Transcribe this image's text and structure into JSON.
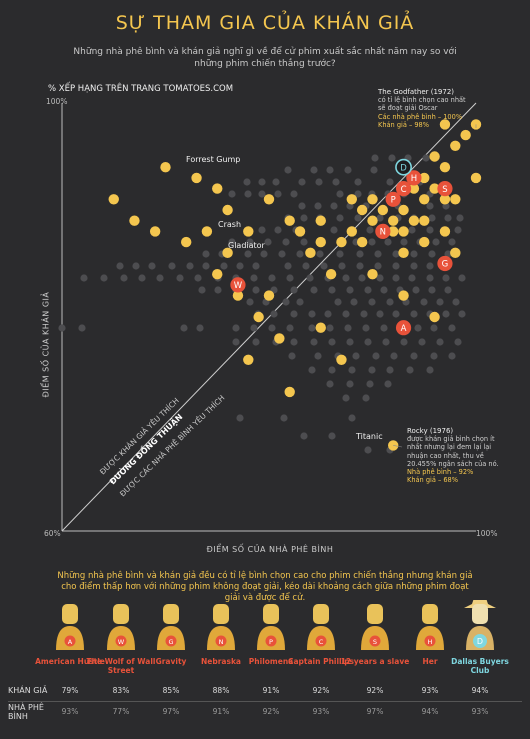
{
  "header": {
    "title": "SỰ THAM GIA CỦA KHÁN GIẢ",
    "subtitle": "Những nhà phê bình và khán giả nghĩ gì về để cử phim xuất sắc nhất năm nay so với những phim chiến thắng trước?"
  },
  "axes": {
    "top_label": "% XẾP HẠNG TRÊN TRANG TOMATOES.COM",
    "y_max_label": "100%",
    "min_label": "60%",
    "x_max_label": "100%",
    "y_title": "ĐIỂM SỐ CỦA KHÁN GIẢ",
    "x_title": "ĐIỂM SỐ CỦA NHÀ PHÊ BÌNH",
    "diag_1": "ĐƯỢC KHÁN GIẢ YÊU THÍCH",
    "diag_2": "ĐƯỜNG ĐỒNG THUẬN",
    "diag_3": "ĐƯỢC CÁC NHÀ PHÊ BÌNH YÊU THÍCH"
  },
  "annotations": {
    "godfather": {
      "head": "The Godfather (1972)",
      "body": "có tỉ lệ bình chọn cao nhất sẽ đoạt giải Oscar",
      "critics": "Các nhà phê bình – 100%",
      "audience": "Khán giả – 98%"
    },
    "rocky": {
      "head": "Rocky (1976)",
      "body": "được khán giả bình chọn ít nhất nhưng lại đem lại lại nhuận cao nhất, thu về 20.455% ngân sách của nó.",
      "critics": "Nhà phê bình – 92%",
      "audience": "Khán giả – 68%"
    },
    "forrest": "Forrest Gump",
    "crash": "Crash",
    "gladiator": "Gladiator",
    "titanic": "Titanic"
  },
  "bottom": {
    "intro": "Những nhà phê bình và khán giả đều có tỉ lệ bình chọn cao cho phim chiến thắng nhưng khán giả cho điểm thấp hơn với những phim không đoạt giải, kéo dài khoảng cách giữa những phim đoạt giải và được để cử.",
    "row_audience": "KHÁN GIẢ",
    "row_critics": "NHÀ PHÊ BÌNH",
    "nominees": [
      {
        "letter": "A",
        "name": "American Hustle",
        "audience": "79%",
        "critics": "93%"
      },
      {
        "letter": "W",
        "name": "The Wolf of Wall Street",
        "audience": "83%",
        "critics": "77%"
      },
      {
        "letter": "G",
        "name": "Gravity",
        "audience": "85%",
        "critics": "97%"
      },
      {
        "letter": "N",
        "name": "Nebraska",
        "audience": "88%",
        "critics": "91%"
      },
      {
        "letter": "P",
        "name": "Philomena",
        "audience": "91%",
        "critics": "92%"
      },
      {
        "letter": "C",
        "name": "Captain Phillips",
        "audience": "92%",
        "critics": "93%"
      },
      {
        "letter": "S",
        "name": "12 years a slave",
        "audience": "92%",
        "critics": "97%"
      },
      {
        "letter": "H",
        "name": "Her",
        "audience": "93%",
        "critics": "94%"
      },
      {
        "letter": "D",
        "name": "Dallas Buyers Club",
        "audience": "94%",
        "critics": "93%"
      }
    ]
  },
  "colors": {
    "bg": "#2b2b2d",
    "gold": "#f4c64f",
    "grey_dot": "#4d4d50",
    "nominee": "#e8523a",
    "winner_ring": "#7fd7e0"
  },
  "chart_data": {
    "type": "scatter",
    "title": "SỰ THAM GIA CỦA KHÁN GIẢ",
    "xlabel": "ĐIỂM SỐ CỦA NHÀ PHÊ BÌNH",
    "ylabel": "ĐIỂM SỐ CỦA KHÁN GIẢ",
    "xlim": [
      60,
      100
    ],
    "ylim": [
      60,
      100
    ],
    "series": [
      {
        "name": "Oscar winners",
        "points": [
          [
            100,
            98
          ],
          [
            98,
            96
          ],
          [
            96,
            95
          ],
          [
            97,
            94
          ],
          [
            95,
            93
          ],
          [
            96,
            92
          ],
          [
            94,
            92
          ],
          [
            97,
            91
          ],
          [
            95,
            91
          ],
          [
            92,
            91
          ],
          [
            90,
            91
          ],
          [
            88,
            91
          ],
          [
            93,
            90
          ],
          [
            91,
            90
          ],
          [
            89,
            90
          ],
          [
            95,
            89
          ],
          [
            94,
            89
          ],
          [
            92,
            89
          ],
          [
            90,
            89
          ],
          [
            85,
            89
          ],
          [
            82,
            89
          ],
          [
            97,
            88
          ],
          [
            93,
            88
          ],
          [
            91,
            88
          ],
          [
            88,
            88
          ],
          [
            83,
            88
          ],
          [
            78,
            88
          ],
          [
            95,
            87
          ],
          [
            89,
            87
          ],
          [
            87,
            87
          ],
          [
            85,
            87
          ],
          [
            84,
            86
          ],
          [
            76,
            86
          ],
          [
            75,
            84
          ],
          [
            80,
            82
          ],
          [
            77,
            82
          ],
          [
            81,
            78
          ],
          [
            78,
            76
          ],
          [
            82,
            73
          ],
          [
            73,
            93
          ],
          [
            65,
            91
          ],
          [
            75,
            92
          ],
          [
            67,
            89
          ],
          [
            69,
            88
          ],
          [
            97,
            98
          ],
          [
            99,
            97
          ],
          [
            100,
            93
          ],
          [
            98,
            91
          ],
          [
            98,
            86
          ],
          [
            92,
            88
          ],
          [
            80,
            91
          ],
          [
            76,
            90
          ],
          [
            72,
            87
          ],
          [
            74,
            88
          ],
          [
            86,
            84
          ],
          [
            90,
            84
          ],
          [
            93,
            82
          ],
          [
            96,
            80
          ],
          [
            85,
            79
          ],
          [
            87,
            76
          ],
          [
            79,
            80
          ],
          [
            92,
            68
          ],
          [
            70,
            94
          ],
          [
            93,
            86
          ]
        ]
      },
      {
        "name": "Nominees (non-winner)",
        "points": [
          [
            93,
            79
          ],
          [
            77,
            83
          ],
          [
            97,
            85
          ],
          [
            91,
            88
          ],
          [
            92,
            91
          ],
          [
            93,
            92
          ],
          [
            97,
            92
          ],
          [
            94,
            93
          ],
          [
            93,
            94
          ]
        ]
      }
    ],
    "grid": false,
    "legend": "none"
  }
}
